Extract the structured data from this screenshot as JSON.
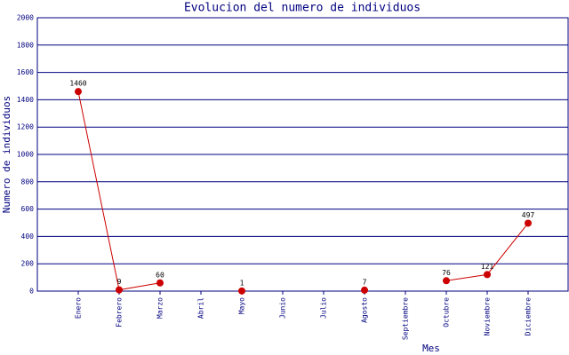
{
  "chart_data": {
    "type": "line",
    "title": "Evolucion del numero de individuos",
    "x_label": "Mes",
    "y_label": "Numero de individuos",
    "categories": [
      "Enero",
      "Febrero",
      "Marzo",
      "Abril",
      "Mayo",
      "Junio",
      "Julio",
      "Agosto",
      "Septiembre",
      "Octubre",
      "Noviembre",
      "Diciembre"
    ],
    "series": [
      {
        "color": "#cc0000",
        "values": [
          1460,
          9,
          60,
          null,
          1,
          null,
          null,
          7,
          null,
          76,
          121,
          497
        ]
      }
    ],
    "ylim": [
      0,
      2000
    ],
    "yticks": [
      0,
      200,
      400,
      600,
      800,
      1000,
      1200,
      1400,
      1600,
      1800,
      2000
    ],
    "grid": true,
    "grid_color": "#000080"
  }
}
